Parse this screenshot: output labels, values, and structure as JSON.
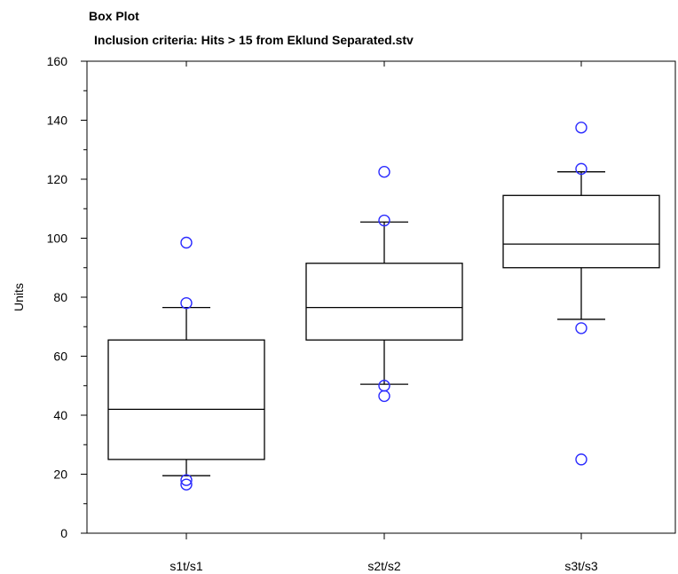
{
  "chart_data": {
    "type": "box",
    "title": "Box Plot",
    "subtitle": "Inclusion criteria: Hits > 15 from Eklund Separated.stv",
    "xlabel": "",
    "ylabel": "Units",
    "ylim": [
      0,
      160
    ],
    "yticks": [
      0,
      20,
      40,
      60,
      80,
      100,
      120,
      140,
      160
    ],
    "grid": false,
    "categories": [
      "s1t/s1",
      "s2t/s2",
      "s3t/s3"
    ],
    "boxes": [
      {
        "category": "s1t/s1",
        "whisker_low": 19.5,
        "q1": 25,
        "median": 42,
        "q3": 65.5,
        "whisker_high": 76.5,
        "outliers": [
          16.5,
          18,
          78,
          98.5
        ]
      },
      {
        "category": "s2t/s2",
        "whisker_low": 50.5,
        "q1": 65.5,
        "median": 76.5,
        "q3": 91.5,
        "whisker_high": 105.5,
        "outliers": [
          46.5,
          50,
          106,
          122.5
        ]
      },
      {
        "category": "s3t/s3",
        "whisker_low": 72.5,
        "q1": 90,
        "median": 98,
        "q3": 114.5,
        "whisker_high": 122.5,
        "outliers": [
          25,
          69.5,
          123.5,
          137.5
        ]
      }
    ],
    "colors": {
      "box": "#000000",
      "outlier": "#2b2bff"
    }
  }
}
